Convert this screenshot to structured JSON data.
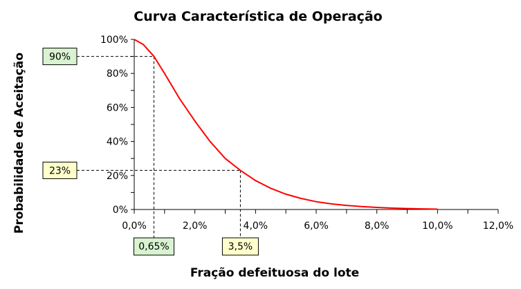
{
  "chart_data": {
    "type": "line",
    "title": "Curva Característica de Operação",
    "xlabel": "Fração defeituosa do lote",
    "ylabel": "Probabilidade de Aceitação",
    "xlim": [
      0,
      12
    ],
    "ylim": [
      0,
      100
    ],
    "x_ticks": [
      "0,0%",
      "2,0%",
      "4,0%",
      "6,0%",
      "8,0%",
      "10,0%",
      "12,0%"
    ],
    "y_ticks": [
      "0%",
      "20%",
      "40%",
      "60%",
      "80%",
      "100%"
    ],
    "grid": false,
    "series": [
      {
        "color": "#ff0000",
        "x": [
          0,
          0.3,
          0.65,
          1.0,
          1.5,
          2.0,
          2.5,
          3.0,
          3.5,
          4.0,
          4.5,
          5.0,
          5.5,
          6.0,
          6.5,
          7.0,
          7.5,
          8.0,
          8.5,
          9.0,
          9.5,
          10.0
        ],
        "y": [
          100,
          97,
          90,
          80,
          65,
          52,
          40,
          30,
          23,
          17,
          12.5,
          9,
          6.5,
          4.6,
          3.3,
          2.4,
          1.7,
          1.2,
          0.8,
          0.55,
          0.35,
          0.2
        ]
      }
    ],
    "annotations": [
      {
        "axis": "y",
        "label": "90%",
        "value": 90,
        "x_ref": 0.65,
        "fill": "#d9f2d0"
      },
      {
        "axis": "y",
        "label": "23%",
        "value": 23,
        "x_ref": 3.5,
        "fill": "#ffffcc"
      },
      {
        "axis": "x",
        "label": "0,65%",
        "value": 0.65,
        "y_ref": 90,
        "fill": "#d9f2d0"
      },
      {
        "axis": "x",
        "label": "3,5%",
        "value": 3.5,
        "y_ref": 23,
        "fill": "#ffffcc"
      }
    ]
  }
}
